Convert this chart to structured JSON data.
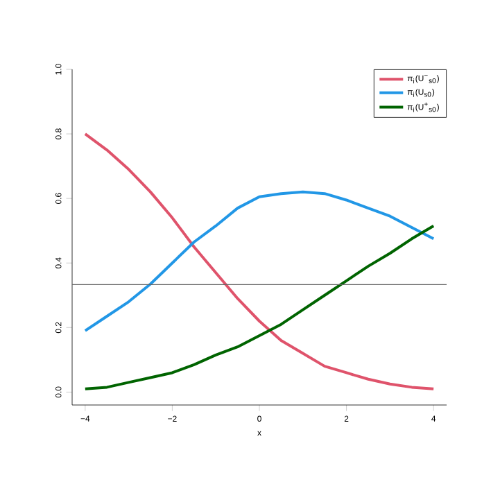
{
  "chart_data": {
    "type": "line",
    "xlabel": "x",
    "x": [
      -4,
      -3.5,
      -3,
      -2.5,
      -2,
      -1.5,
      -1,
      -0.5,
      0,
      0.5,
      1,
      1.5,
      2,
      2.5,
      3,
      3.5,
      4
    ],
    "series": [
      {
        "name": "π$_{i}$(U$^{−}$$_{s0}$)",
        "color": "#df536b",
        "values": [
          0.8,
          0.75,
          0.69,
          0.62,
          0.54,
          0.45,
          0.37,
          0.29,
          0.22,
          0.16,
          0.12,
          0.08,
          0.06,
          0.04,
          0.025,
          0.015,
          0.01
        ]
      },
      {
        "name": "π$_{i}$(U$_{s0}$)",
        "color": "#2297e6",
        "values": [
          0.19,
          0.235,
          0.28,
          0.335,
          0.4,
          0.465,
          0.515,
          0.57,
          0.605,
          0.615,
          0.62,
          0.615,
          0.595,
          0.57,
          0.545,
          0.51,
          0.475
        ]
      },
      {
        "name": "π$_{i}$(U$^{+}$$_{s0}$)",
        "color": "#006400",
        "values": [
          0.01,
          0.015,
          0.03,
          0.045,
          0.06,
          0.085,
          0.115,
          0.14,
          0.175,
          0.21,
          0.255,
          0.3,
          0.345,
          0.39,
          0.43,
          0.475,
          0.515
        ]
      }
    ],
    "xlim": [
      -4.3,
      4.3
    ],
    "ylim": [
      -0.04,
      1.0
    ],
    "xticks": [
      {
        "value": -4,
        "label": "−4"
      },
      {
        "value": -2,
        "label": "−2"
      },
      0,
      2,
      4
    ],
    "yticks": [
      {
        "value": 0,
        "label": "0.0"
      },
      {
        "value": 0.2,
        "label": "0.2"
      },
      {
        "value": 0.4,
        "label": "0.4"
      },
      {
        "value": 0.6,
        "label": "0.6"
      },
      {
        "value": 0.8,
        "label": "0.8"
      },
      {
        "value": 1,
        "label": "1.0"
      }
    ],
    "ref_lines": [
      {
        "axis": "y",
        "value": 0.333,
        "color": "#666666"
      }
    ],
    "legend": "top right",
    "grid": false
  }
}
